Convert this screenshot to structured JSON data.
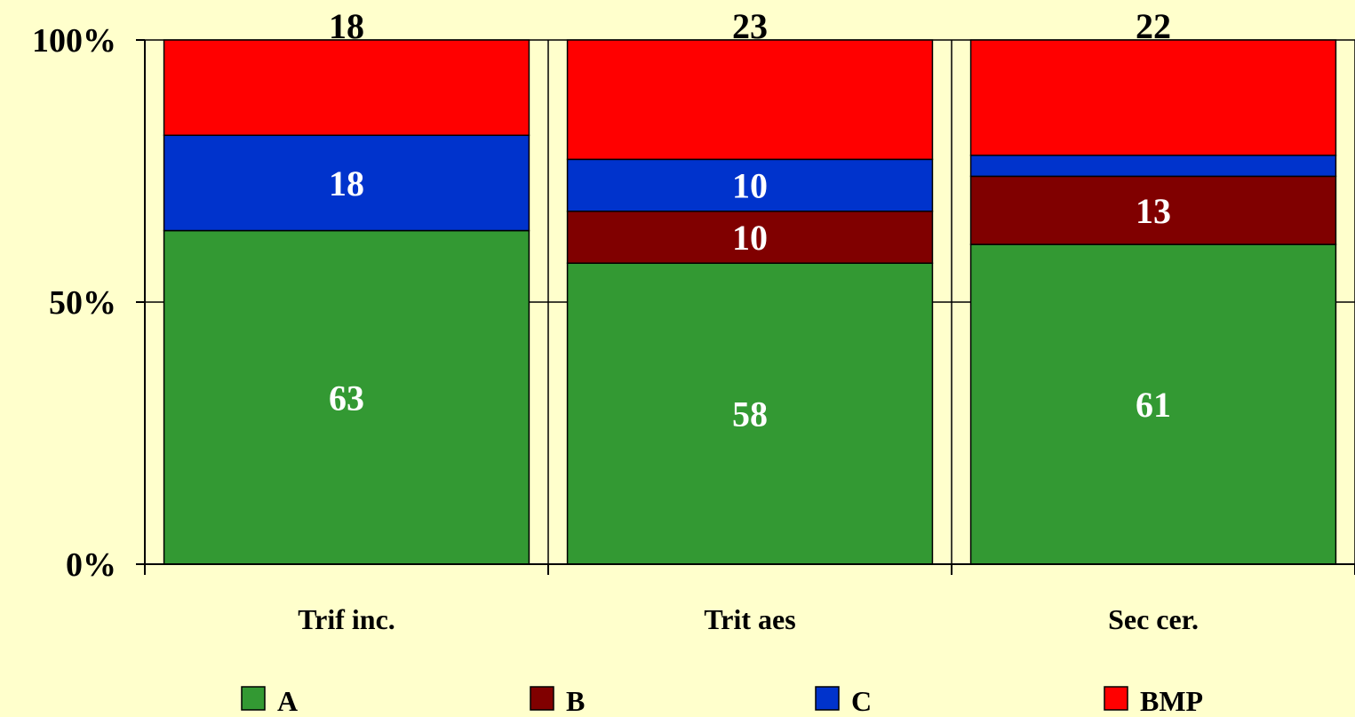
{
  "colors": {
    "background": "#ffffcc",
    "A": "#339933",
    "B": "#800000",
    "C": "#0033cc",
    "BMP": "#ff0000"
  },
  "chart_data": {
    "type": "bar",
    "stacked": true,
    "percent_stacked": true,
    "categories": [
      "Trif inc.",
      "Trit aes",
      "Sec cer."
    ],
    "series": [
      {
        "name": "A",
        "color": "#339933",
        "values": [
          63,
          58,
          61
        ],
        "labels": [
          "63",
          "58",
          "61"
        ]
      },
      {
        "name": "B",
        "color": "#800000",
        "values": [
          0,
          10,
          13
        ],
        "labels": [
          "",
          "10",
          "13"
        ]
      },
      {
        "name": "C",
        "color": "#0033cc",
        "values": [
          18,
          10,
          4
        ],
        "labels": [
          "18",
          "10",
          ""
        ]
      },
      {
        "name": "BMP",
        "color": "#ff0000",
        "values": [
          18,
          23,
          22
        ],
        "labels": [
          "18",
          "23",
          "22"
        ]
      }
    ],
    "ylim": [
      0,
      100
    ],
    "yticks": [
      "0%",
      "50%",
      "100%"
    ],
    "ytick_values": [
      0,
      50,
      100
    ],
    "legend_position": "bottom",
    "grid": true
  }
}
